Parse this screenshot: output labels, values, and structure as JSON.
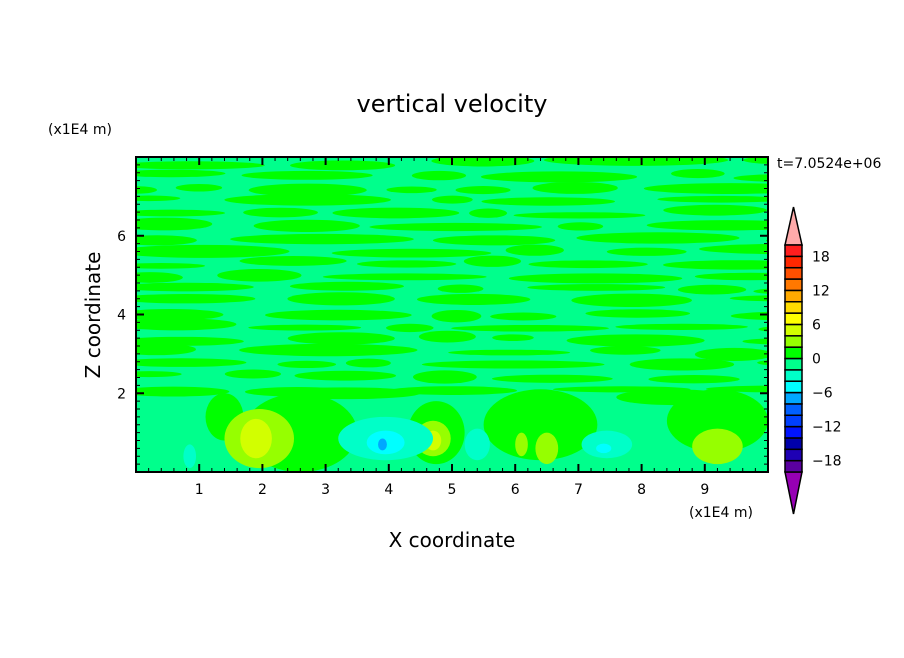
{
  "chart_data": {
    "type": "heatmap",
    "title": "vertical velocity",
    "xlabel": "X coordinate",
    "ylabel": "Z coordinate",
    "x_unit": "(x1E4 m)",
    "y_unit": "(x1E4 m)",
    "time_label": "t=7.0524e+06",
    "xlim": [
      0,
      10
    ],
    "ylim": [
      0,
      8
    ],
    "x_ticks": [
      "1",
      "2",
      "3",
      "4",
      "5",
      "6",
      "7",
      "8",
      "9"
    ],
    "y_ticks": [
      "2",
      "4",
      "6"
    ],
    "colorbar": {
      "levels": [
        -20,
        -18,
        -16,
        -14,
        -12,
        -10,
        -8,
        -6,
        -4,
        -2,
        0,
        2,
        4,
        6,
        8,
        10,
        12,
        14,
        16,
        18,
        20
      ],
      "labels": [
        "18",
        "12",
        "6",
        "0",
        "-6",
        "-12",
        "-18"
      ],
      "colors": [
        "#5a00a0",
        "#1e00b4",
        "#0000aa",
        "#0014ff",
        "#0040ff",
        "#0060ff",
        "#00a8ff",
        "#00ffff",
        "#00ffc8",
        "#00ff8c",
        "#00ff00",
        "#96ff00",
        "#d2ff00",
        "#ffff00",
        "#ffdc00",
        "#ffaa00",
        "#ff7800",
        "#ff5000",
        "#ff2800",
        "#ff1e1e"
      ],
      "over_color": "#ffaaaa",
      "under_color": "#9600b4"
    },
    "background_value": 1,
    "features": [
      {
        "x": 1.95,
        "z": 0.85,
        "rx": 0.55,
        "rz": 0.75,
        "value": 3
      },
      {
        "x": 1.9,
        "z": 0.85,
        "rx": 0.25,
        "rz": 0.5,
        "value": 5
      },
      {
        "x": 4.7,
        "z": 0.85,
        "rx": 0.28,
        "rz": 0.45,
        "value": 3
      },
      {
        "x": 4.7,
        "z": 0.8,
        "rx": 0.13,
        "rz": 0.25,
        "value": 5
      },
      {
        "x": 6.5,
        "z": 0.6,
        "rx": 0.18,
        "rz": 0.4,
        "value": 3
      },
      {
        "x": 6.1,
        "z": 0.7,
        "rx": 0.1,
        "rz": 0.3,
        "value": 3
      },
      {
        "x": 9.2,
        "z": 0.65,
        "rx": 0.4,
        "rz": 0.45,
        "value": 3
      },
      {
        "x": 3.95,
        "z": 0.85,
        "rx": 0.75,
        "rz": 0.55,
        "value": -3
      },
      {
        "x": 3.95,
        "z": 0.75,
        "rx": 0.3,
        "rz": 0.3,
        "value": -5
      },
      {
        "x": 3.9,
        "z": 0.7,
        "rx": 0.07,
        "rz": 0.15,
        "value": -7
      },
      {
        "x": 5.4,
        "z": 0.7,
        "rx": 0.2,
        "rz": 0.4,
        "value": -3
      },
      {
        "x": 7.45,
        "z": 0.7,
        "rx": 0.4,
        "rz": 0.35,
        "value": -3
      },
      {
        "x": 7.4,
        "z": 0.6,
        "rx": 0.12,
        "rz": 0.12,
        "value": -5
      },
      {
        "x": 0.85,
        "z": 0.4,
        "rx": 0.1,
        "rz": 0.3,
        "value": -3
      }
    ]
  }
}
